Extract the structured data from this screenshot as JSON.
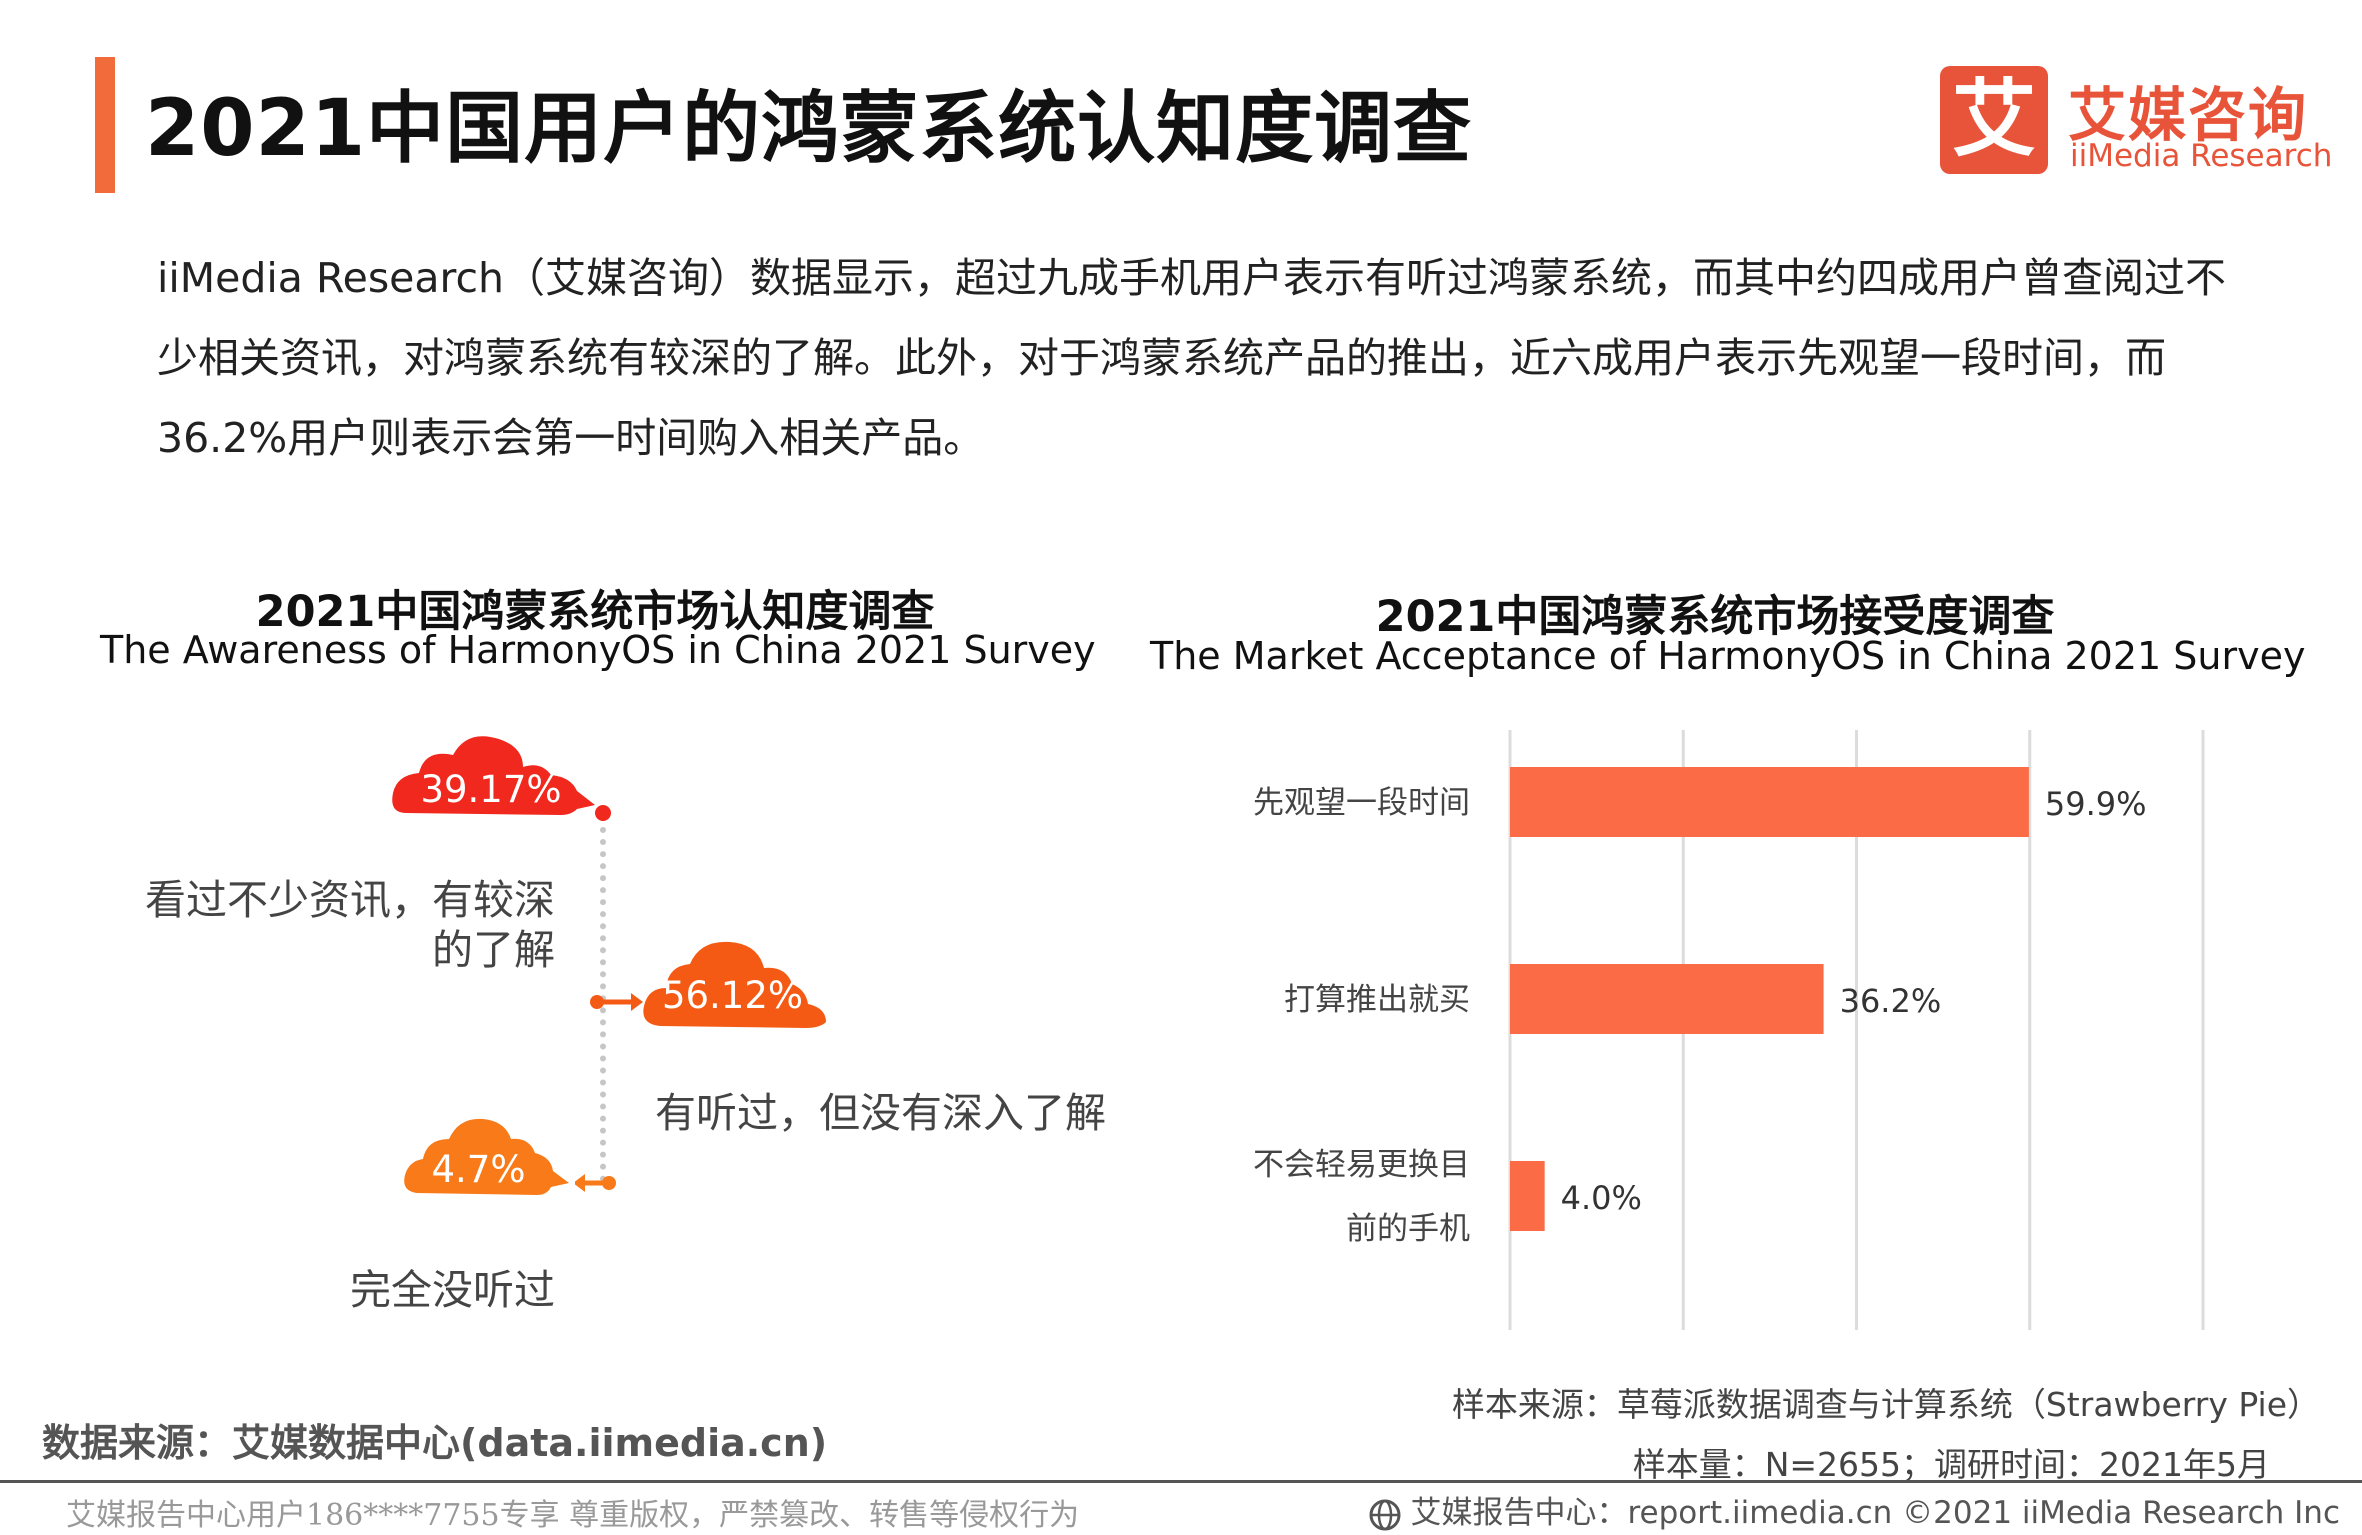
{
  "title": "2021中国用户的鸿蒙系统认知度调查",
  "logo": {
    "mark": "艾",
    "cn": "艾媒咨询",
    "en": "iiMedia Research"
  },
  "intro": "iiMedia Research（艾媒咨询）数据显示，超过九成手机用户表示有听过鸿蒙系统，而其中约四成用户曾查阅过不少相关资讯，对鸿蒙系统有较深的了解。此外，对于鸿蒙系统产品的推出，近六成用户表示先观望一段时间，而36.2%用户则表示会第一时间购入相关产品。",
  "left_chart": {
    "title_cn": "2021中国鸿蒙系统市场认知度调查",
    "title_en": "The Awareness of HarmonyOS in China 2021 Survey"
  },
  "right_chart": {
    "title_cn": "2021中国鸿蒙系统市场接受度调查",
    "title_en": "The Market Acceptance of HarmonyOS in China 2021 Survey"
  },
  "chart_data": [
    {
      "type": "pie",
      "title": "2021中国鸿蒙系统市场认知度调查",
      "subtitle": "The Awareness of HarmonyOS in China 2021 Survey",
      "categories": [
        "看过不少资讯，有较深的了解",
        "有听过，但没有深入了解",
        "完全没听过"
      ],
      "values": [
        39.17,
        56.12,
        4.7
      ],
      "value_labels": [
        "39.17%",
        "56.12%",
        "4.7%"
      ],
      "label_lines": [
        [
          "看过不少资讯，有较深",
          "的了解"
        ],
        [
          "有听过，但没有深入了解"
        ],
        [
          "完全没听过"
        ]
      ],
      "colors": [
        "#f0281e",
        "#f55a14",
        "#f87a18"
      ]
    },
    {
      "type": "bar",
      "orientation": "horizontal",
      "title": "2021中国鸿蒙系统市场接受度调查",
      "subtitle": "The Market Acceptance of HarmonyOS in China 2021 Survey",
      "categories": [
        "先观望一段时间",
        "打算推出就买",
        "不会轻易更换目前的手机"
      ],
      "category_lines": [
        [
          "先观望一段时间"
        ],
        [
          "打算推出就买"
        ],
        [
          "不会轻易更换目",
          "前的手机"
        ]
      ],
      "values": [
        59.9,
        36.2,
        4.0
      ],
      "value_labels": [
        "59.9%",
        "36.2%",
        "4.0%"
      ],
      "unit": "%",
      "xlim": [
        0,
        80
      ],
      "grid": true,
      "color": "#fb6b45"
    }
  ],
  "sources": {
    "data_source": "数据来源：艾媒数据中心(data.iimedia.cn)",
    "sample_source": "样本来源：草莓派数据调查与计算系统（Strawberry  Pie）",
    "sample_size": "样本量：N=2655；调研时间：2021年5月"
  },
  "footer": {
    "left": "艾媒报告中心用户186****7755专享 尊重版权，严禁篡改、转售等侵权行为",
    "right": "艾媒报告中心：report.iimedia.cn  ©2021  iiMedia Research  Inc"
  }
}
